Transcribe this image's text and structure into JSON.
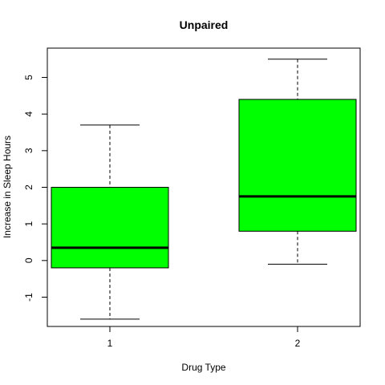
{
  "chart_data": {
    "type": "boxplot",
    "title": "Unpaired",
    "xlabel": "Drug Type",
    "ylabel": "Increase in Sleep Hours",
    "categories": [
      "1",
      "2"
    ],
    "y_ticks": [
      -1,
      0,
      1,
      2,
      3,
      4,
      5
    ],
    "ylim": [
      -1.8,
      5.8
    ],
    "box_color": "#00ff00",
    "boxes": [
      {
        "category": "1",
        "min": -1.6,
        "q1": -0.2,
        "median": 0.35,
        "q3": 2.0,
        "max": 3.7
      },
      {
        "category": "2",
        "min": -0.1,
        "q1": 0.8,
        "median": 1.75,
        "q3": 4.4,
        "max": 5.5
      }
    ]
  }
}
